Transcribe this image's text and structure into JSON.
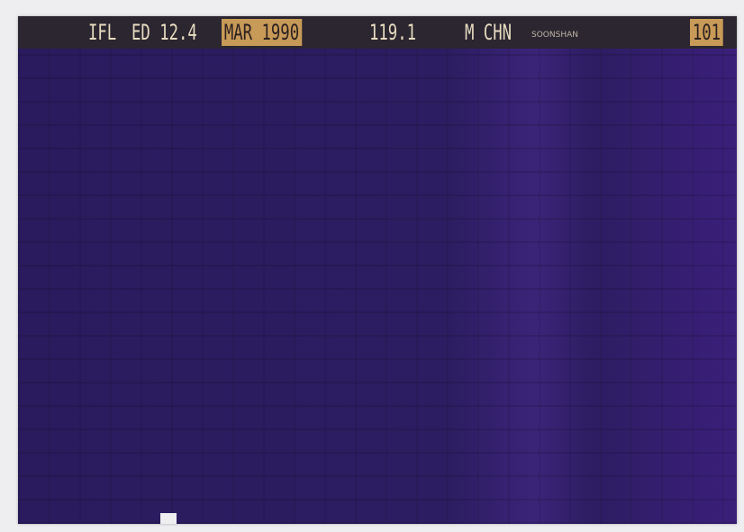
{
  "header": {
    "publication": "IFL",
    "edition": "ED 12.4",
    "date": "MAR 1990",
    "code": "119.1",
    "model": "M CHN",
    "name": "SOONSHAN",
    "fiche_number": "101"
  }
}
